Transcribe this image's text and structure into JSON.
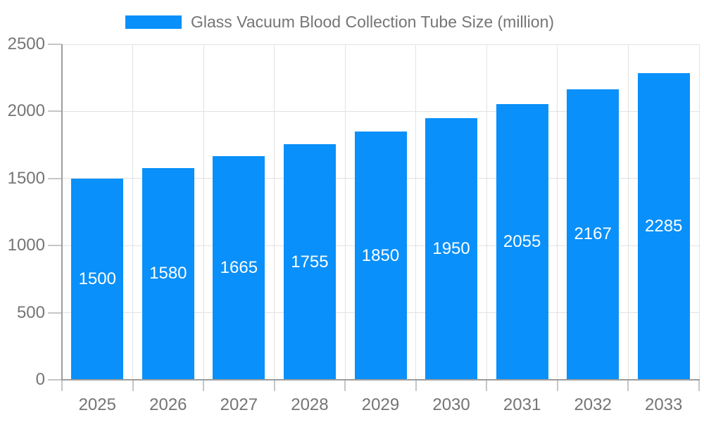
{
  "legend": {
    "label": "Glass Vacuum Blood Collection Tube Size (million)"
  },
  "chart_data": {
    "type": "bar",
    "title": "Glass Vacuum Blood Collection Tube Size (million)",
    "categories": [
      "2025",
      "2026",
      "2027",
      "2028",
      "2029",
      "2030",
      "2031",
      "2032",
      "2033"
    ],
    "values": [
      1500,
      1580,
      1665,
      1755,
      1850,
      1950,
      2055,
      2167,
      2285
    ],
    "xlabel": "",
    "ylabel": "",
    "ylim": [
      0,
      2500
    ],
    "yticks": [
      0,
      500,
      1000,
      1500,
      2000,
      2500
    ],
    "grid": true,
    "legend_position": "top",
    "bar_color": "#0990fa",
    "value_label_color": "#ffffff",
    "axis_text_color": "#757575",
    "gridline_color": "#e2e2e2",
    "axis_line_color": "#9d9d9d",
    "tick_color": "#c6c6c6"
  }
}
